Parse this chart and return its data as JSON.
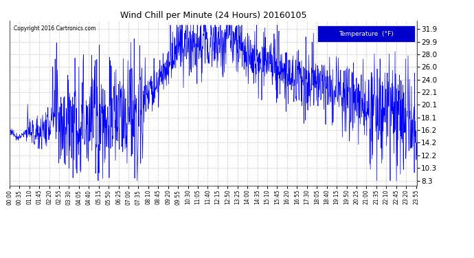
{
  "title": "Wind Chill per Minute (24 Hours) 20160105",
  "copyright_text": "Copyright 2016 Cartronics.com",
  "legend_label": "Temperature  (°F)",
  "line_color": "#0000FF",
  "background_color": "#ffffff",
  "grid_color": "#bbbbbb",
  "yticks": [
    8.3,
    10.3,
    12.2,
    14.2,
    16.2,
    18.1,
    20.1,
    22.1,
    24.0,
    26.0,
    28.0,
    29.9,
    31.9
  ],
  "ylim": [
    7.5,
    33.2
  ],
  "xtick_interval_minutes": 35,
  "total_minutes": 1440,
  "legend_facecolor": "#0000cc",
  "legend_textcolor": "#ffffff"
}
